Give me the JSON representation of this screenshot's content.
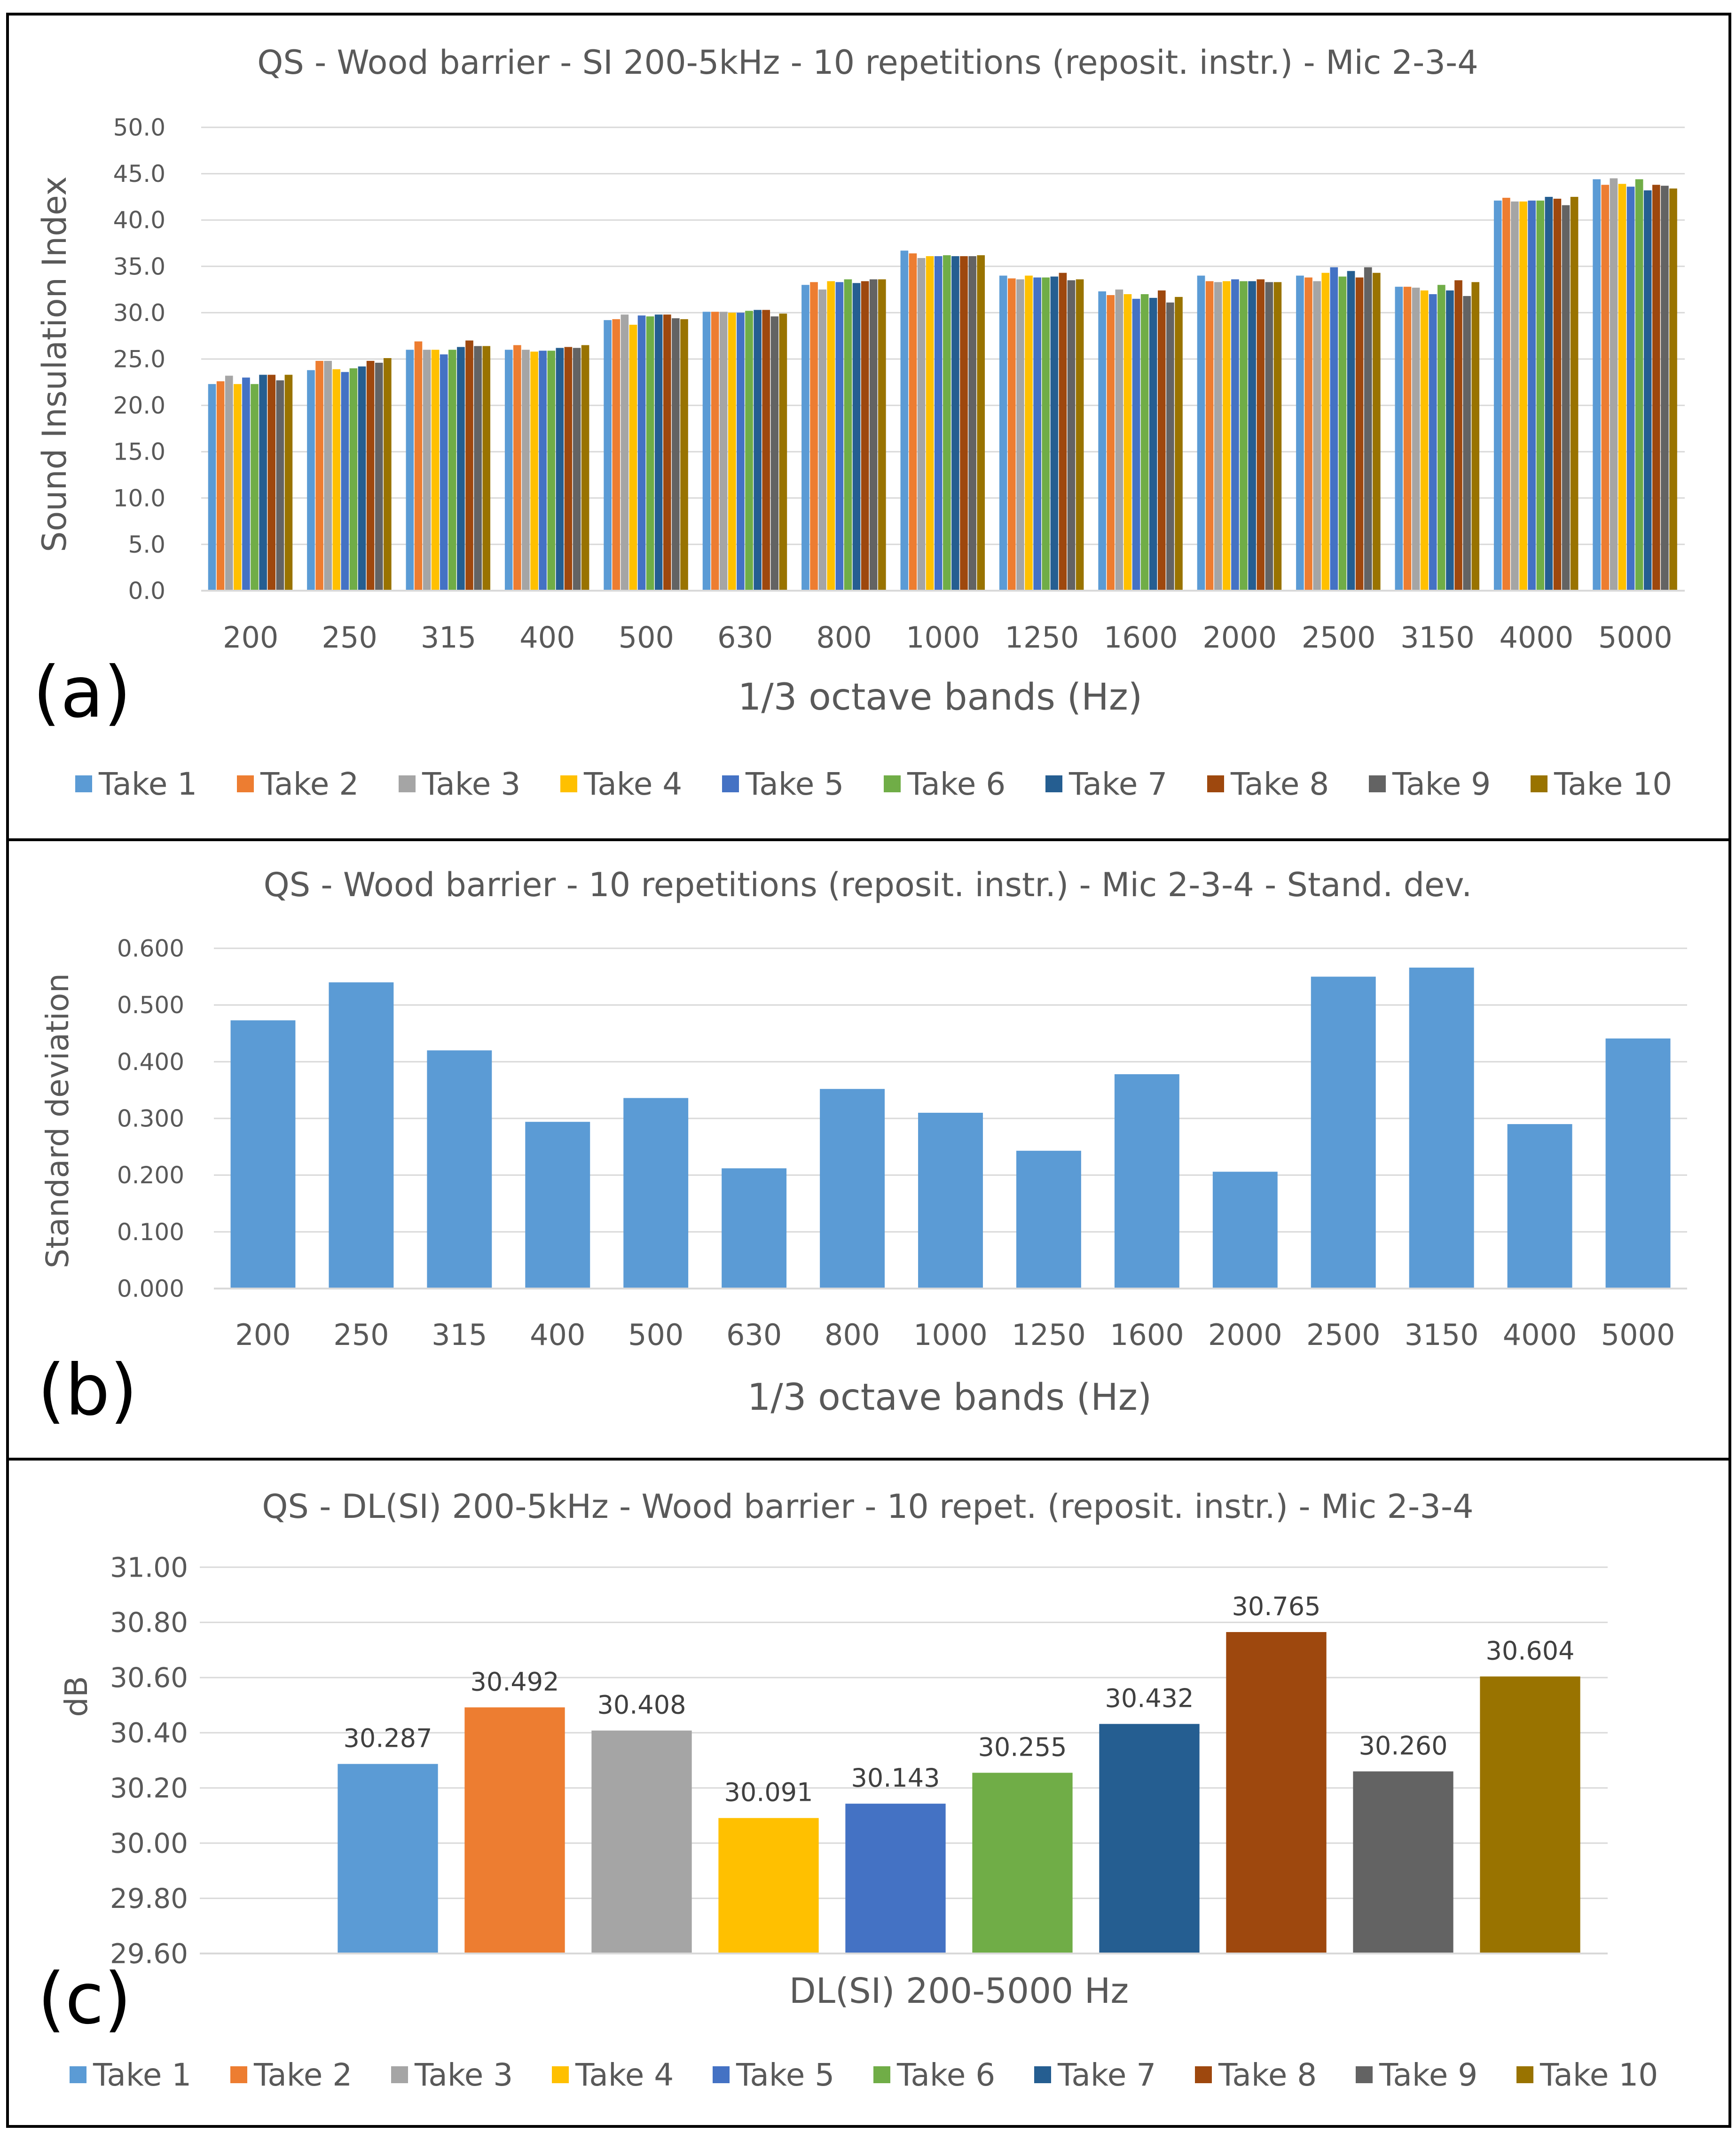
{
  "series_names": [
    "Take 1",
    "Take 2",
    "Take 3",
    "Take 4",
    "Take 5",
    "Take 6",
    "Take 7",
    "Take 8",
    "Take 9",
    "Take 10"
  ],
  "series_colors": [
    "#5B9BD5",
    "#ED7D31",
    "#A5A5A5",
    "#FFC000",
    "#4472C4",
    "#70AD47",
    "#255E91",
    "#9E480E",
    "#636363",
    "#997300"
  ],
  "panels": {
    "a": {
      "letter": "(a)"
    },
    "b": {
      "letter": "(b)"
    },
    "c": {
      "letter": "(c)"
    }
  },
  "chart_data": [
    {
      "type": "bar",
      "panel": "a",
      "title": "QS - Wood barrier - SI 200-5kHz - 10 repetitions (reposit. instr.) - Mic 2-3-4",
      "xlabel": "1/3 octave bands (Hz)",
      "ylabel": "Sound Insulation Index",
      "ylim": [
        0,
        50
      ],
      "ytick_step": 5,
      "ytick_decimals": 1,
      "grid": true,
      "legend": "bottom",
      "categories": [
        "200",
        "250",
        "315",
        "400",
        "500",
        "630",
        "800",
        "1000",
        "1250",
        "1600",
        "2000",
        "2500",
        "3150",
        "4000",
        "5000"
      ],
      "series": [
        {
          "name": "Take 1",
          "values": [
            22.3,
            23.8,
            26.0,
            26.0,
            29.2,
            30.1,
            33.0,
            36.7,
            34.0,
            32.3,
            34.0,
            34.0,
            32.8,
            42.1,
            44.4
          ]
        },
        {
          "name": "Take 2",
          "values": [
            22.6,
            24.8,
            26.9,
            26.5,
            29.3,
            30.1,
            33.3,
            36.4,
            33.7,
            31.9,
            33.4,
            33.8,
            32.8,
            42.4,
            43.8
          ]
        },
        {
          "name": "Take 3",
          "values": [
            23.2,
            24.8,
            26.0,
            26.0,
            29.8,
            30.1,
            32.5,
            35.9,
            33.6,
            32.5,
            33.3,
            33.4,
            32.7,
            42.0,
            44.5
          ]
        },
        {
          "name": "Take 4",
          "values": [
            22.3,
            23.9,
            26.0,
            25.8,
            28.7,
            30.0,
            33.4,
            36.1,
            34.0,
            32.0,
            33.4,
            34.3,
            32.4,
            42.0,
            43.9
          ]
        },
        {
          "name": "Take 5",
          "values": [
            23.0,
            23.6,
            25.5,
            25.9,
            29.7,
            30.0,
            33.3,
            36.1,
            33.8,
            31.5,
            33.6,
            34.9,
            32.0,
            42.1,
            43.6
          ]
        },
        {
          "name": "Take 6",
          "values": [
            22.3,
            24.0,
            26.0,
            25.9,
            29.6,
            30.2,
            33.6,
            36.2,
            33.8,
            32.0,
            33.4,
            33.9,
            33.0,
            42.1,
            44.4
          ]
        },
        {
          "name": "Take 7",
          "values": [
            23.3,
            24.2,
            26.3,
            26.2,
            29.8,
            30.3,
            33.2,
            36.1,
            33.9,
            31.6,
            33.4,
            34.5,
            32.4,
            42.5,
            43.2
          ]
        },
        {
          "name": "Take 8",
          "values": [
            23.3,
            24.8,
            27.0,
            26.3,
            29.8,
            30.3,
            33.4,
            36.1,
            34.3,
            32.4,
            33.6,
            33.8,
            33.5,
            42.3,
            43.8
          ]
        },
        {
          "name": "Take 9",
          "values": [
            22.7,
            24.6,
            26.4,
            26.2,
            29.4,
            29.6,
            33.6,
            36.1,
            33.5,
            31.1,
            33.3,
            34.9,
            31.8,
            41.6,
            43.7
          ]
        },
        {
          "name": "Take 10",
          "values": [
            23.3,
            25.1,
            26.4,
            26.5,
            29.3,
            29.9,
            33.6,
            36.2,
            33.6,
            31.7,
            33.3,
            34.3,
            33.3,
            42.5,
            43.4
          ]
        }
      ]
    },
    {
      "type": "bar",
      "panel": "b",
      "title": "QS - Wood barrier - 10 repetitions (reposit. instr.) - Mic 2-3-4 - Stand. dev.",
      "xlabel": "1/3 octave bands (Hz)",
      "ylabel": "Standard deviation",
      "ylim": [
        0,
        0.6
      ],
      "ytick_step": 0.1,
      "ytick_decimals": 3,
      "grid": true,
      "color": "#5B9BD5",
      "categories": [
        "200",
        "250",
        "315",
        "400",
        "500",
        "630",
        "800",
        "1000",
        "1250",
        "1600",
        "2000",
        "2500",
        "3150",
        "4000",
        "5000"
      ],
      "values": [
        0.473,
        0.54,
        0.42,
        0.294,
        0.336,
        0.212,
        0.352,
        0.31,
        0.243,
        0.378,
        0.206,
        0.55,
        0.566,
        0.29,
        0.441
      ]
    },
    {
      "type": "bar",
      "panel": "c",
      "title": "QS - DL(SI) 200-5kHz - Wood barrier - 10 repet. (reposit. instr.) - Mic 2-3-4",
      "xlabel": "DL(SI) 200-5000 Hz",
      "ylabel": "dB",
      "ylim": [
        29.6,
        31.0
      ],
      "ytick_step": 0.2,
      "ytick_decimals": 2,
      "grid": true,
      "legend": "bottom",
      "categories": [
        "Take 1",
        "Take 2",
        "Take 3",
        "Take 4",
        "Take 5",
        "Take 6",
        "Take 7",
        "Take 8",
        "Take 9",
        "Take 10"
      ],
      "values": [
        30.287,
        30.492,
        30.408,
        30.091,
        30.143,
        30.255,
        30.432,
        30.765,
        30.26,
        30.604
      ],
      "value_labels": [
        "30.287",
        "30.492",
        "30.408",
        "30.091",
        "30.143",
        "30.255",
        "30.432",
        "30.765",
        "30.260",
        "30.604"
      ]
    }
  ]
}
